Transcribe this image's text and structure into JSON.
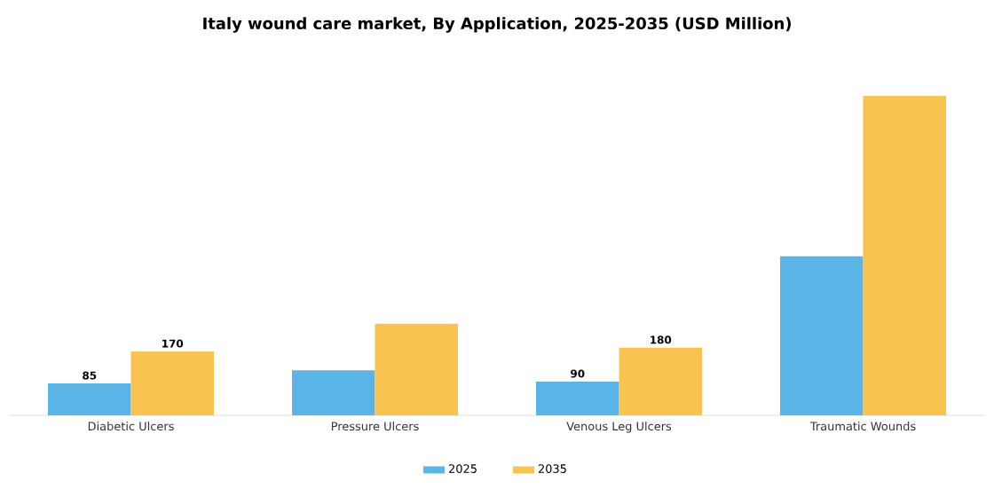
{
  "chart_data": {
    "type": "bar",
    "title": "Italy wound care market, By Application, 2025-2035 (USD Million)",
    "categories": [
      "Diabetic Ulcers",
      "Pressure Ulcers",
      "Venous Leg Ulcers",
      "Traumatic Wounds"
    ],
    "series": [
      {
        "name": "2025",
        "color": "#5ab4e5",
        "values": [
          85,
          120,
          90,
          423
        ],
        "value_labels": [
          "85",
          null,
          "90",
          null
        ]
      },
      {
        "name": "2035",
        "color": "#f8c44f",
        "values": [
          170,
          244,
          180,
          850
        ],
        "value_labels": [
          "170",
          null,
          "180",
          null
        ]
      }
    ],
    "legend": "bottom"
  }
}
